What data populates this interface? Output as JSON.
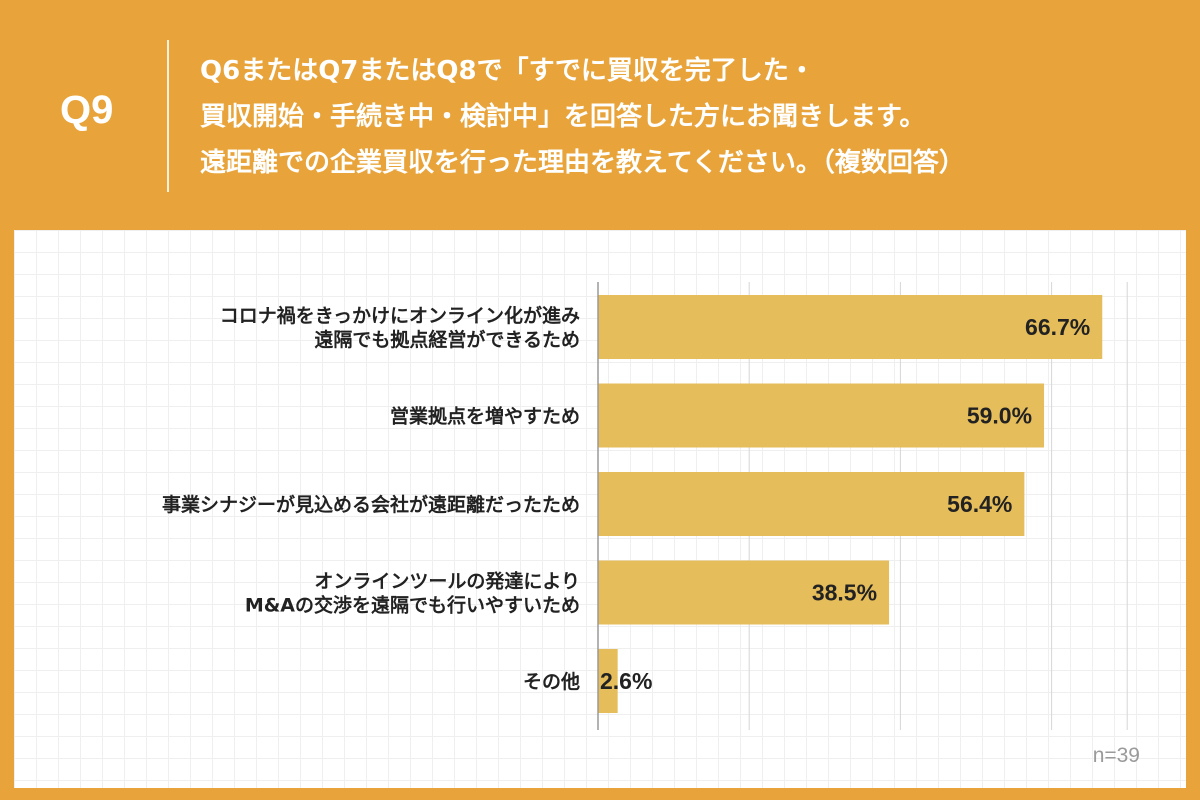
{
  "header": {
    "qnum": "Q9",
    "lines": [
      "Q6またはQ7またはQ8で「すでに買収を完了した・",
      "買収開始・手続き中・検討中」を回答した方にお聞きします。",
      "遠距離での企業買収を行った理由を教えてください。（複数回答）"
    ]
  },
  "note": "n=39",
  "colors": {
    "background": "#E8A43A",
    "bar": "#E5BD5A",
    "panel": "#FFFFFF"
  },
  "chart_data": {
    "type": "bar",
    "orientation": "horizontal",
    "categories": [
      [
        "コロナ禍をきっかけにオンライン化が進み",
        "遠隔でも拠点経営ができるため"
      ],
      [
        "営業拠点を増やすため"
      ],
      [
        "事業シナジーが見込める会社が遠距離だったため"
      ],
      [
        "オンラインツールの発達により",
        "M&Aの交渉を遠隔でも行いやすいため"
      ],
      [
        "その他"
      ]
    ],
    "values": [
      66.7,
      59.0,
      56.4,
      38.5,
      2.6
    ],
    "value_labels": [
      "66.7%",
      "59.0%",
      "56.4%",
      "38.5%",
      "2.6%"
    ],
    "xlim": [
      0,
      70
    ],
    "grid": true
  }
}
